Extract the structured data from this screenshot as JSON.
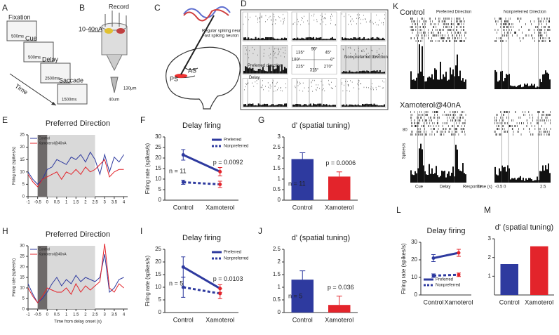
{
  "panel_labels": [
    "A",
    "B",
    "C",
    "D",
    "E",
    "F",
    "G",
    "H",
    "I",
    "J",
    "K",
    "L",
    "M"
  ],
  "task": {
    "steps": [
      {
        "name": "Fixation",
        "duration": "500ms"
      },
      {
        "name": "Cue",
        "duration": "500ms"
      },
      {
        "name": "Delay",
        "duration": "2500ms"
      },
      {
        "name": "Saccade",
        "duration": "1500ms"
      }
    ],
    "axis": "Time"
  },
  "electrode": {
    "record": "Record",
    "current": "10-40nA",
    "depth": "130μm",
    "width": "40um"
  },
  "brain": {
    "legend": [
      "Regular spiking neuron",
      "Fast spiking neuron"
    ],
    "sulci": [
      "AS",
      "PS"
    ]
  },
  "tuning_grid": {
    "angles": [
      "90°",
      "135°",
      "45°",
      "180°",
      "0°",
      "225°",
      "270°",
      "315°"
    ],
    "preferred": "Preferred direction",
    "nonpreferred": "Non-preferred direction",
    "epoch": "Delay"
  },
  "raster_panel": {
    "conditions": [
      "Control",
      "Xamoterol@40nA"
    ],
    "directions": [
      "Preferred Direction",
      "Nonpreferred Direction"
    ],
    "scale": "80",
    "ylabel": "Spikes/s",
    "epochs": [
      "Cue",
      "Delay",
      "Response"
    ],
    "xlabel": "Time (s)",
    "xticks": [
      "-0.5",
      "0",
      "2.5"
    ]
  },
  "chart_data": [
    {
      "type": "line",
      "title": "Preferred Direction",
      "ylabel": "Firing rate (spikes/s)",
      "x": [
        -1,
        -0.75,
        -0.5,
        -0.25,
        0,
        0.25,
        0.5,
        0.75,
        1,
        1.25,
        1.5,
        1.75,
        2,
        2.25,
        2.5,
        2.75,
        3,
        3.25,
        3.5,
        3.75,
        4
      ],
      "xlim": [
        -1,
        4.2
      ],
      "xticks": [
        -1,
        -0.5,
        0,
        0.5,
        1,
        1.5,
        2,
        2.5,
        3,
        3.5,
        4
      ],
      "ylim": [
        0,
        25
      ],
      "yticks": [
        0,
        5,
        10,
        15,
        20,
        25
      ],
      "cue_period": [
        -0.5,
        0
      ],
      "delay_period": [
        0,
        2.5
      ],
      "legend": "upper left",
      "series": [
        {
          "name": "Control",
          "color": "#2e3a9f",
          "values": [
            10,
            7,
            5,
            7,
            11,
            12,
            15,
            14,
            13,
            16,
            15,
            17,
            14,
            18,
            15,
            9,
            17,
            10,
            16,
            14,
            17
          ]
        },
        {
          "name": "Xamoterol@40nA",
          "color": "#e3242b",
          "values": [
            9,
            6,
            4,
            7,
            8,
            9,
            10,
            7,
            10,
            9,
            11,
            9,
            12,
            10,
            11,
            13,
            15,
            8,
            10,
            11,
            11
          ]
        }
      ]
    },
    {
      "type": "line",
      "title": "Delay firing",
      "ylabel": "Firing rate (spikes/s)",
      "categories": [
        "Control",
        "Xamoterol"
      ],
      "category_colors": [
        "#2e3a9f",
        "#e3242b"
      ],
      "ylim": [
        0,
        30
      ],
      "yticks": [
        0,
        5,
        10,
        15,
        20,
        25,
        30
      ],
      "legend": "upper right",
      "annotations": [
        "n = 11",
        "p = 0.0092"
      ],
      "series": [
        {
          "name": "Preferred",
          "color": "#2e3a9f",
          "line_style": "solid",
          "values": [
            21.5,
            13.5
          ],
          "errors": [
            2.5,
            2
          ]
        },
        {
          "name": "Nonpreferred",
          "color": "#2e3a9f",
          "line_style": "dashed",
          "values": [
            8.5,
            7.5
          ],
          "errors": [
            1,
            1.5
          ]
        }
      ]
    },
    {
      "type": "bar",
      "title": "d' (spatial tuning)",
      "categories": [
        "Control",
        "Xamoterol"
      ],
      "category_colors": [
        "#2e3a9f",
        "#e3242b"
      ],
      "colors": [
        "#2e3a9f",
        "#e3242b"
      ],
      "values": [
        1.95,
        1.12
      ],
      "errors": [
        0.3,
        0.22
      ],
      "ylim": [
        0,
        3
      ],
      "yticks": [
        0,
        0.5,
        1,
        1.5,
        2,
        2.5,
        3
      ],
      "annotations": [
        "n = 11",
        "p = 0.0006"
      ]
    },
    {
      "type": "line",
      "title": "Preferred Direction",
      "ylabel": "Firing rate (spikes/s)",
      "xlabel": "Time from delay onset (s)",
      "x": [
        -1,
        -0.75,
        -0.5,
        -0.25,
        0,
        0.25,
        0.5,
        0.75,
        1,
        1.25,
        1.5,
        1.75,
        2,
        2.25,
        2.5,
        2.75,
        3,
        3.25,
        3.5,
        3.75,
        4
      ],
      "xlim": [
        -1,
        4.2
      ],
      "xticks": [
        -1,
        -0.5,
        0,
        0.5,
        1,
        1.5,
        2,
        2.5,
        3,
        3.5,
        4
      ],
      "ylim": [
        0,
        30
      ],
      "yticks": [
        0,
        5,
        10,
        15,
        20,
        25,
        30
      ],
      "cue_period": [
        -0.5,
        0
      ],
      "delay_period": [
        0,
        2.5
      ],
      "legend": "upper left",
      "series": [
        {
          "name": "Control",
          "color": "#2e3a9f",
          "values": [
            12,
            7,
            3,
            5,
            8,
            12,
            15,
            11,
            14,
            12,
            16,
            13,
            15,
            14,
            13,
            15,
            26,
            8,
            10,
            14,
            15
          ]
        },
        {
          "name": "Xamoterol@40nA",
          "color": "#e3242b",
          "values": [
            10,
            6,
            3,
            6,
            10,
            9,
            8,
            8,
            10,
            7,
            12,
            8,
            11,
            9,
            11,
            13,
            31,
            10,
            8,
            12,
            10
          ]
        }
      ]
    },
    {
      "type": "line",
      "title": "Delay firing",
      "ylabel": "Firing rate (spikes/s)",
      "categories": [
        "Control",
        "Xamoterol"
      ],
      "category_colors": [
        "#2e3a9f",
        "#e3242b"
      ],
      "ylim": [
        0,
        25
      ],
      "yticks": [
        0,
        5,
        10,
        15,
        20,
        25
      ],
      "legend": "upper right",
      "annotations": [
        "n = 5",
        "p = 0.0103"
      ],
      "series": [
        {
          "name": "Preferred",
          "color": "#2e3a9f",
          "line_style": "solid",
          "values": [
            18,
            9.5
          ],
          "errors": [
            4,
            1.5
          ]
        },
        {
          "name": "Nonpreferred",
          "color": "#2e3a9f",
          "line_style": "dashed",
          "values": [
            10,
            7.5
          ],
          "errors": [
            4,
            2
          ]
        }
      ]
    },
    {
      "type": "bar",
      "title": "d' (spatial tuning)",
      "categories": [
        "Control",
        "Xamoterol"
      ],
      "category_colors": [
        "#2e3a9f",
        "#e3242b"
      ],
      "colors": [
        "#2e3a9f",
        "#e3242b"
      ],
      "values": [
        1.3,
        0.3
      ],
      "errors": [
        0.35,
        0.35
      ],
      "ylim": [
        0,
        2.5
      ],
      "yticks": [
        0,
        0.5,
        1,
        1.5,
        2,
        2.5
      ],
      "annotations": [
        "n = 5",
        "p = 0.036"
      ]
    },
    {
      "type": "line",
      "title": "Delay firing",
      "ylabel": "Firing rate (spikes/s)",
      "categories": [
        "Control",
        "Xamoterol"
      ],
      "category_colors": [
        "#2e3a9f",
        "#e3242b"
      ],
      "ylim": [
        0,
        30
      ],
      "yticks": [
        0,
        10,
        20,
        30
      ],
      "legend": "lower left",
      "series": [
        {
          "name": "Preferred",
          "color": "#2e3a9f",
          "line_style": "solid",
          "values": [
            21,
            24
          ],
          "errors": [
            2,
            2
          ]
        },
        {
          "name": "Nonpreferred",
          "color": "#2e3a9f",
          "line_style": "dashed",
          "values": [
            11,
            11.5
          ],
          "errors": [
            1,
            1
          ]
        }
      ]
    },
    {
      "type": "bar",
      "title": "d' (spatial tuning)",
      "categories": [
        "Control",
        "Xamoterol"
      ],
      "category_colors": [
        "#2e3a9f",
        "#e3242b"
      ],
      "colors": [
        "#2e3a9f",
        "#e3242b"
      ],
      "values": [
        1.65,
        2.6
      ],
      "ylim": [
        0,
        3
      ],
      "yticks": [
        1,
        2,
        3
      ]
    }
  ]
}
